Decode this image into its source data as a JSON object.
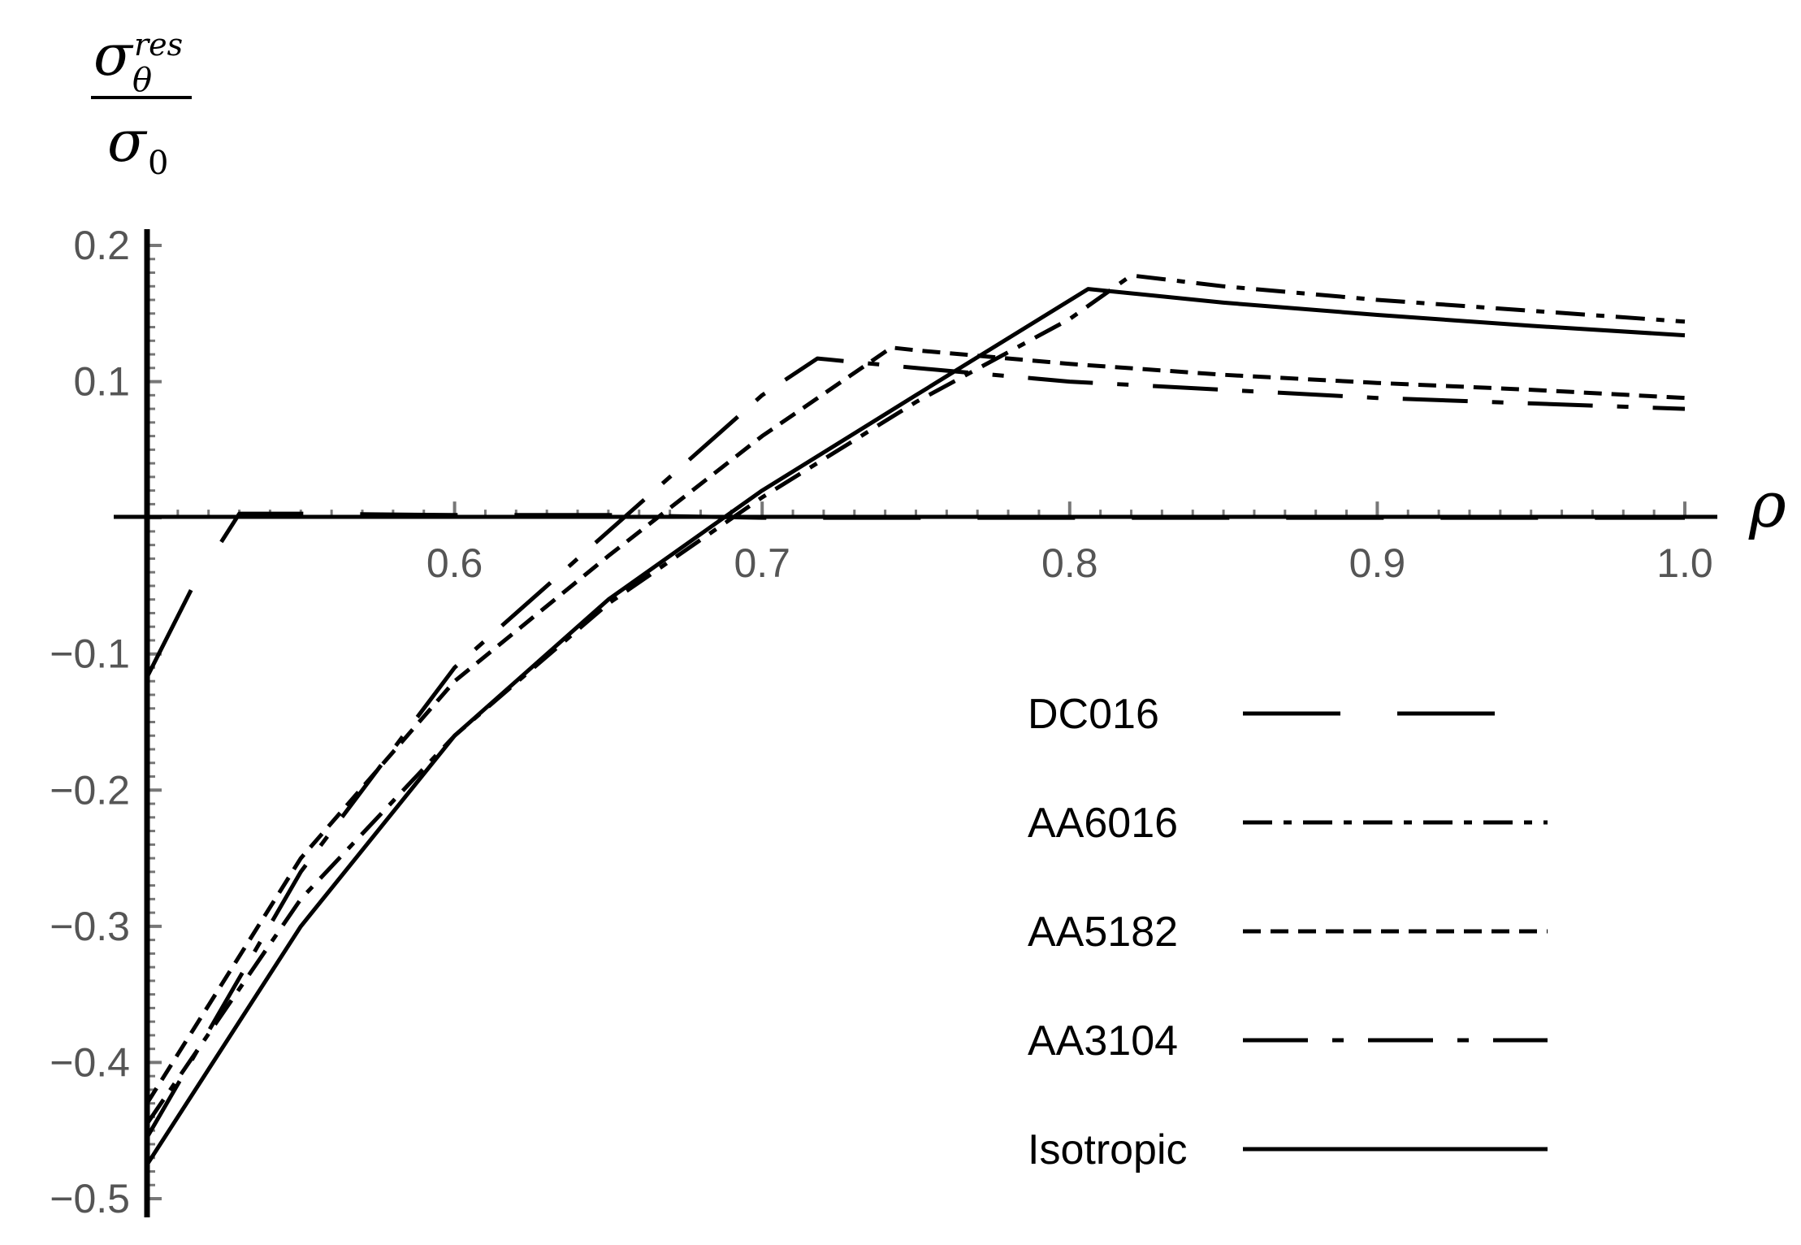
{
  "chart_data": {
    "type": "line",
    "title": "",
    "ylabel": {
      "symbol": "σ",
      "sub": "θ",
      "sup": "res",
      "den_symbol": "σ",
      "den_sub": "0"
    },
    "xlabel": "ρ",
    "xlim": [
      0.5,
      1.0
    ],
    "ylim": [
      -0.5,
      0.2
    ],
    "x_ticks": [
      "0.6",
      "0.7",
      "0.8",
      "0.9",
      "1.0"
    ],
    "y_ticks": [
      "0.2",
      "0.1",
      "−0.1",
      "−0.2",
      "−0.3",
      "−0.4",
      "−0.5"
    ],
    "x_tick_values": [
      0.6,
      0.7,
      0.8,
      0.9,
      1.0
    ],
    "y_tick_values": [
      0.2,
      0.1,
      -0.1,
      -0.2,
      -0.3,
      -0.4,
      -0.5
    ],
    "grid": false,
    "legend_position": "bottom-right",
    "series": [
      {
        "name": "DC016",
        "dash": "long-dash",
        "x": [
          0.5,
          0.515,
          0.53,
          0.55,
          0.6,
          0.65,
          0.7,
          0.75,
          0.8,
          0.85,
          0.9,
          0.95,
          1.0
        ],
        "y": [
          -0.117,
          -0.05,
          0.003,
          0.003,
          0.002,
          0.002,
          0.0,
          0.0,
          0.0,
          0.0,
          0.0,
          0.0,
          0.0
        ]
      },
      {
        "name": "AA6016",
        "dash": "dash-dot",
        "x": [
          0.5,
          0.55,
          0.6,
          0.65,
          0.7,
          0.75,
          0.8,
          0.82,
          0.85,
          0.9,
          0.95,
          1.0
        ],
        "y": [
          -0.445,
          -0.28,
          -0.16,
          -0.063,
          0.015,
          0.085,
          0.146,
          0.178,
          0.17,
          0.16,
          0.152,
          0.144
        ]
      },
      {
        "name": "AA5182",
        "dash": "short-dash",
        "x": [
          0.5,
          0.55,
          0.6,
          0.65,
          0.7,
          0.742,
          0.75,
          0.8,
          0.85,
          0.9,
          0.95,
          1.0
        ],
        "y": [
          -0.43,
          -0.25,
          -0.12,
          -0.028,
          0.06,
          0.125,
          0.123,
          0.113,
          0.105,
          0.099,
          0.094,
          0.088
        ]
      },
      {
        "name": "AA3104",
        "dash": "dash-dot-dash",
        "x": [
          0.5,
          0.55,
          0.6,
          0.65,
          0.7,
          0.718,
          0.75,
          0.8,
          0.85,
          0.9,
          0.95,
          1.0
        ],
        "y": [
          -0.455,
          -0.26,
          -0.11,
          -0.01,
          0.09,
          0.117,
          0.11,
          0.1,
          0.094,
          0.088,
          0.084,
          0.08
        ]
      },
      {
        "name": "Isotropic",
        "dash": "solid",
        "x": [
          0.5,
          0.55,
          0.6,
          0.65,
          0.7,
          0.75,
          0.806,
          0.85,
          0.9,
          0.95,
          1.0
        ],
        "y": [
          -0.475,
          -0.3,
          -0.16,
          -0.06,
          0.02,
          0.09,
          0.168,
          0.158,
          0.149,
          0.141,
          0.134
        ]
      }
    ]
  }
}
